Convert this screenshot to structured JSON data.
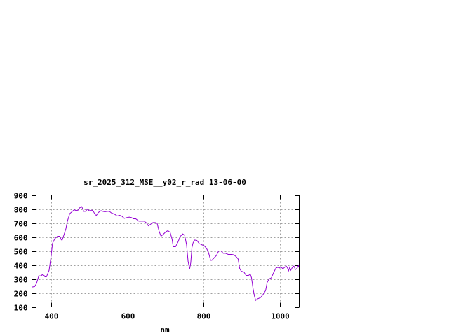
{
  "chart_data": {
    "type": "line",
    "title": "sr_2025_312_MSE__y02_r_rad 13-06-00",
    "xlabel": "nm",
    "ylabel": "",
    "xlim": [
      350,
      1050
    ],
    "ylim": [
      100,
      900
    ],
    "xticks": [
      400,
      600,
      800,
      1000
    ],
    "yticks": [
      100,
      200,
      300,
      400,
      500,
      600,
      700,
      800,
      900
    ],
    "grid": true,
    "line_color": "#9400d3",
    "series": [
      {
        "x": [
          350,
          357,
          362,
          368,
          374,
          377,
          382,
          384,
          388,
          395,
          400,
          404,
          410,
          417,
          423,
          426,
          429,
          433,
          439,
          443,
          449,
          456,
          461,
          466,
          471,
          475,
          480,
          482,
          486,
          490,
          496,
          500,
          507,
          511,
          516,
          519,
          524,
          531,
          536,
          541,
          547,
          553,
          558,
          567,
          573,
          580,
          585,
          592,
          598,
          605,
          611,
          616,
          622,
          630,
          635,
          644,
          650,
          655,
          661,
          667,
          673,
          678,
          683,
          688,
          695,
          701,
          706,
          712,
          717,
          720,
          726,
          733,
          738,
          745,
          750,
          755,
          759,
          763,
          766,
          769,
          772,
          776,
          782,
          788,
          794,
          801,
          807,
          812,
          818,
          821,
          827,
          833,
          839,
          845,
          851,
          857,
          864,
          873,
          879,
          885,
          890,
          894,
          898,
          905,
          911,
          917,
          922,
          925,
          929,
          933,
          936,
          941,
          949,
          955,
          962,
          966,
          971,
          977,
          983,
          989,
          994,
          998,
          1002,
          1007,
          1012,
          1016,
          1019,
          1022,
          1025,
          1028,
          1031,
          1036,
          1040,
          1044,
          1048,
          1050
        ],
        "y": [
          242,
          245,
          267,
          322,
          322,
          330,
          325,
          315,
          315,
          362,
          458,
          555,
          588,
          605,
          605,
          583,
          575,
          608,
          658,
          713,
          767,
          783,
          795,
          788,
          792,
          808,
          817,
          808,
          783,
          783,
          800,
          787,
          792,
          783,
          758,
          755,
          775,
          788,
          783,
          780,
          783,
          783,
          772,
          762,
          750,
          755,
          750,
          733,
          738,
          742,
          738,
          730,
          730,
          713,
          713,
          713,
          700,
          680,
          692,
          703,
          703,
          697,
          642,
          605,
          622,
          638,
          645,
          633,
          583,
          530,
          530,
          567,
          603,
          622,
          612,
          545,
          425,
          370,
          417,
          525,
          558,
          578,
          575,
          553,
          545,
          537,
          520,
          492,
          433,
          433,
          450,
          467,
          500,
          500,
          483,
          483,
          475,
          475,
          472,
          458,
          442,
          375,
          355,
          350,
          325,
          325,
          333,
          308,
          233,
          175,
          147,
          158,
          167,
          188,
          217,
          275,
          300,
          308,
          345,
          378,
          383,
          378,
          387,
          372,
          383,
          392,
          380,
          358,
          383,
          362,
          378,
          392,
          367,
          375,
          395,
          380
        ]
      }
    ]
  }
}
